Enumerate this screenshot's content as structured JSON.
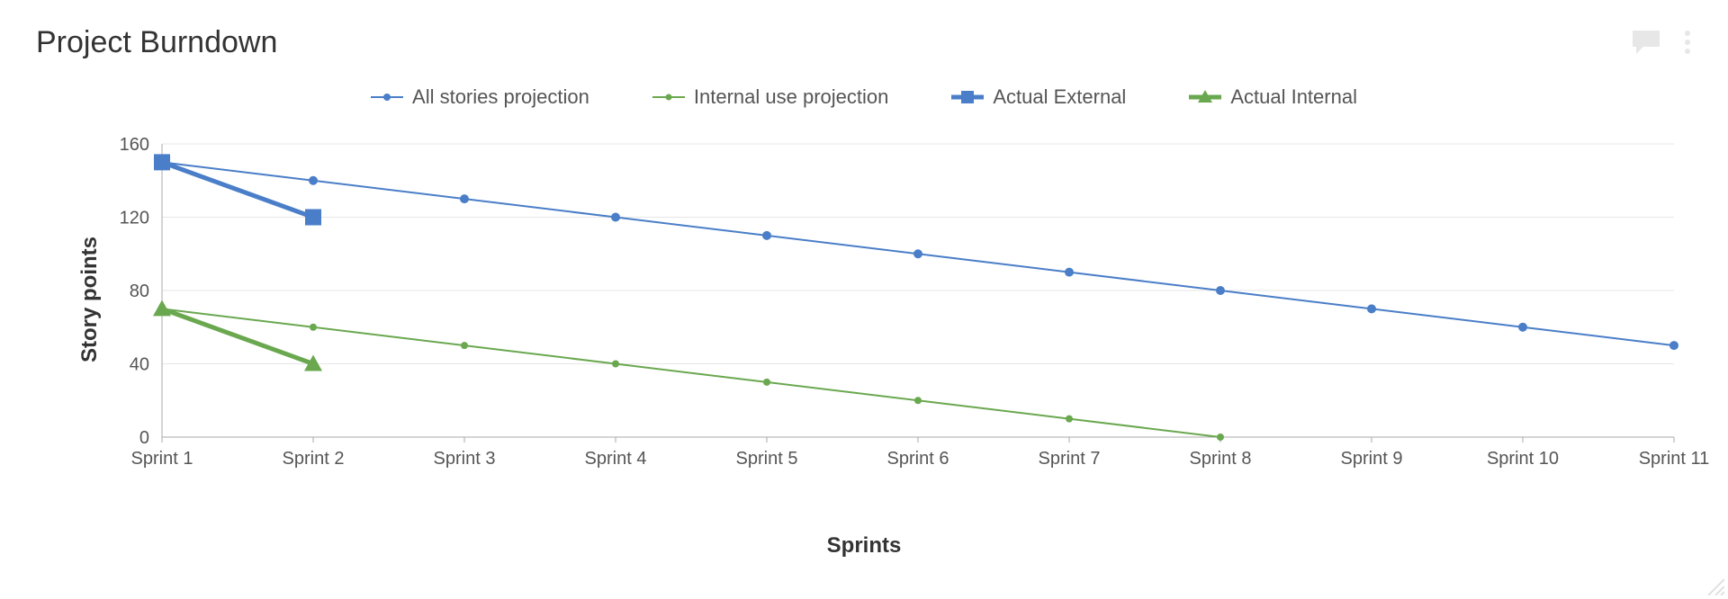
{
  "title": "Project Burndown",
  "chart": {
    "type": "line",
    "xlabel": "Sprints",
    "ylabel": "Story points",
    "background_color": "#ffffff",
    "grid_color": "#e6e6e6",
    "axis_color": "#aaaaaa",
    "tick_fontsize": 20,
    "label_fontsize": 24,
    "title_fontsize": 34,
    "legend_fontsize": 22,
    "ylim": [
      0,
      160
    ],
    "ytick_step": 40,
    "categories": [
      "Sprint 1",
      "Sprint 2",
      "Sprint 3",
      "Sprint 4",
      "Sprint 5",
      "Sprint 6",
      "Sprint 7",
      "Sprint 8",
      "Sprint 9",
      "Sprint 10",
      "Sprint 11"
    ],
    "series": [
      {
        "id": "all-stories-projection",
        "label": "All stories projection",
        "color": "#4a7ec8",
        "marker": "circle",
        "marker_size": 5,
        "line_width": 2,
        "values": [
          150,
          140,
          130,
          120,
          110,
          100,
          90,
          80,
          70,
          60,
          50
        ]
      },
      {
        "id": "internal-use-projection",
        "label": "Internal use projection",
        "color": "#6aa84f",
        "marker": "circle",
        "marker_size": 4,
        "line_width": 2,
        "values": [
          70,
          60,
          50,
          40,
          30,
          20,
          10,
          0,
          null,
          null,
          null
        ]
      },
      {
        "id": "actual-external",
        "label": "Actual External",
        "color": "#4a7ec8",
        "marker": "square",
        "marker_size": 9,
        "line_width": 5,
        "values": [
          150,
          120,
          null,
          null,
          null,
          null,
          null,
          null,
          null,
          null,
          null
        ]
      },
      {
        "id": "actual-internal",
        "label": "Actual Internal",
        "color": "#6aa84f",
        "marker": "triangle",
        "marker_size": 10,
        "line_width": 5,
        "values": [
          70,
          40,
          null,
          null,
          null,
          null,
          null,
          null,
          null,
          null,
          null
        ]
      }
    ]
  },
  "legend": {
    "items": [
      {
        "label": "All stories projection"
      },
      {
        "label": "Internal use projection"
      },
      {
        "label": "Actual External"
      },
      {
        "label": "Actual Internal"
      }
    ]
  },
  "icons": {
    "comment": "comment-icon",
    "menu": "more-icon",
    "resize": "resize-handle-icon"
  }
}
